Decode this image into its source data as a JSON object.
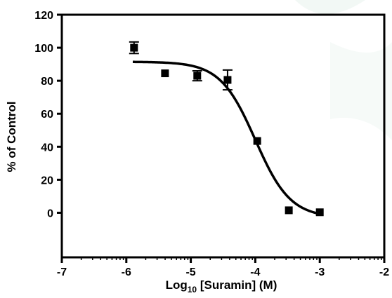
{
  "chart_data": {
    "type": "scatter",
    "xlabel_main": "Log",
    "xlabel_sub": "10",
    "xlabel_rest": " [Suramin] (M)",
    "ylabel": "% of Control",
    "xlim": [
      -7,
      -2
    ],
    "ylim": [
      -27,
      120
    ],
    "x_ticks": [
      -7,
      -6,
      -5,
      -4,
      -3,
      -2
    ],
    "y_ticks": [
      0,
      20,
      40,
      60,
      80,
      100,
      120
    ],
    "x_minor_log_ticks": true,
    "grid": false,
    "points": [
      {
        "x": -5.88,
        "y": 100,
        "err": 3.5
      },
      {
        "x": -5.4,
        "y": 84.5,
        "err": 0
      },
      {
        "x": -4.9,
        "y": 83,
        "err": 3
      },
      {
        "x": -4.43,
        "y": 80.5,
        "err": 6
      },
      {
        "x": -3.97,
        "y": 43.5,
        "err": 0
      },
      {
        "x": -3.48,
        "y": 1.5,
        "err": 0
      },
      {
        "x": -3.0,
        "y": 0.3,
        "err": 0
      }
    ],
    "fit": {
      "type": "sigmoid",
      "top": 91.5,
      "bottom": -3,
      "logIC50": -4.0,
      "hill": -1.6,
      "x_range": [
        -5.9,
        -3.0
      ]
    },
    "colors": {
      "marker": "#000000",
      "line": "#000000",
      "axis": "#000000"
    }
  }
}
